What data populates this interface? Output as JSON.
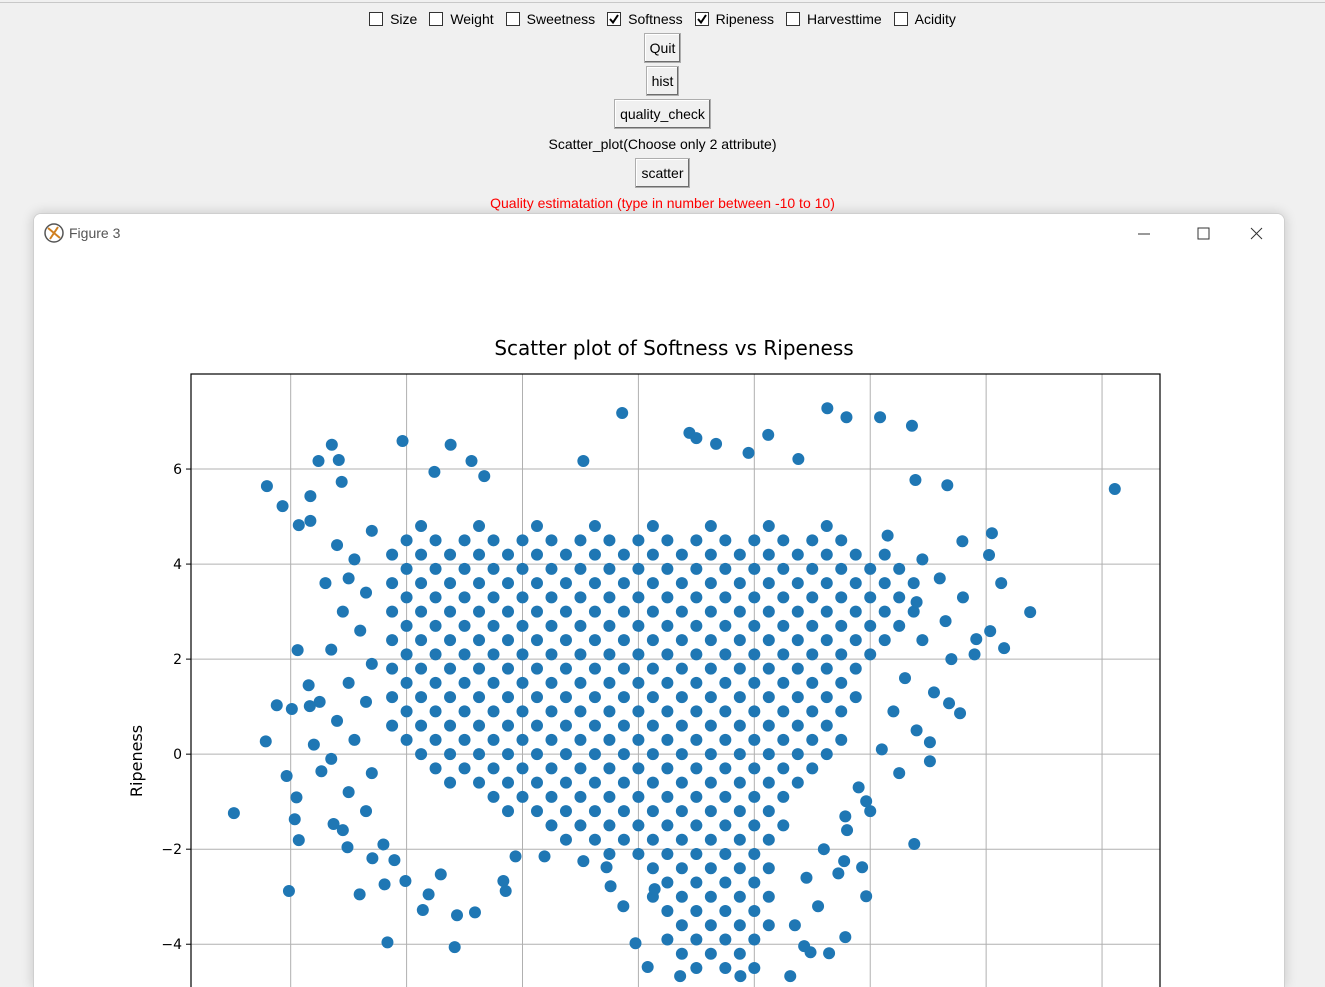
{
  "app": {
    "checkboxes": [
      {
        "label": "Size",
        "checked": false
      },
      {
        "label": "Weight",
        "checked": false
      },
      {
        "label": "Sweetness",
        "checked": false
      },
      {
        "label": "Softness",
        "checked": true
      },
      {
        "label": "Ripeness",
        "checked": true
      },
      {
        "label": "Harvesttime",
        "checked": false
      },
      {
        "label": "Acidity",
        "checked": false
      }
    ],
    "widgets": [
      {
        "kind": "button",
        "text": "Quit"
      },
      {
        "kind": "button",
        "text": "hist"
      },
      {
        "kind": "button",
        "text": "quality_check"
      },
      {
        "kind": "label",
        "text": "Scatter_plot(Choose only 2 attribute)"
      },
      {
        "kind": "button",
        "text": "scatter"
      },
      {
        "kind": "label",
        "text": "Quality estimatation (type in number between -10 to 10)",
        "color": "#ff0000"
      }
    ]
  },
  "window": {
    "title": "Figure 3"
  },
  "chart_data": {
    "type": "scatter",
    "title": "Scatter plot of Softness vs Ripeness",
    "y_label": "Ripeness",
    "color": "#1f77b4",
    "grid": true,
    "xlim": [
      -7.72,
      9.0
    ],
    "ylim": [
      -4.9,
      8.0
    ],
    "xticks": [
      -6,
      -4,
      -2,
      0,
      2,
      4,
      6,
      8
    ],
    "yticks": [
      {
        "value": -4,
        "label": "−4"
      },
      {
        "value": -2,
        "label": "−2"
      },
      0,
      2,
      4,
      6
    ],
    "x": [
      -3.75,
      -2.75,
      -1.75,
      -0.75,
      0.25,
      1.25,
      2.25,
      3.25,
      -4,
      -3.5,
      -3,
      -2.5,
      -2,
      -1.5,
      -1,
      -0.5,
      0,
      0.5,
      1,
      1.5,
      2,
      2.5,
      3,
      3.5,
      -4.25,
      -3.75,
      -3.25,
      -2.75,
      -2.25,
      -1.75,
      -1.25,
      -0.75,
      -0.25,
      0.25,
      0.75,
      1.25,
      1.75,
      2.25,
      2.75,
      3.25,
      3.75,
      4.25,
      -4,
      -3.5,
      -3,
      -2.5,
      -2,
      -1.5,
      -1,
      -0.5,
      0,
      0.5,
      1,
      1.5,
      2,
      2.5,
      3,
      3.5,
      4,
      4.5,
      -4.25,
      -3.75,
      -3.25,
      -2.75,
      -2.25,
      -1.75,
      -1.25,
      -0.75,
      -0.25,
      0.25,
      0.75,
      1.25,
      1.75,
      2.25,
      2.75,
      3.25,
      3.75,
      4.25,
      4.75,
      -4,
      -3.5,
      -3,
      -2.5,
      -2,
      -1.5,
      -1,
      -0.5,
      0,
      0.5,
      1,
      1.5,
      2,
      2.5,
      3,
      3.5,
      4,
      4.5,
      -4.25,
      -3.75,
      -3.25,
      -2.75,
      -2.25,
      -1.75,
      -1.25,
      -0.75,
      -0.25,
      0.25,
      0.75,
      1.25,
      1.75,
      2.25,
      2.75,
      3.25,
      3.75,
      4.25,
      4.75,
      -4,
      -3.5,
      -3,
      -2.5,
      -2,
      -1.5,
      -1,
      -0.5,
      0,
      0.5,
      1,
      1.5,
      2,
      2.5,
      3,
      3.5,
      4,
      4.5,
      -4.25,
      -3.75,
      -3.25,
      -2.75,
      -2.25,
      -1.75,
      -1.25,
      -0.75,
      -0.25,
      0.25,
      0.75,
      1.25,
      1.75,
      2.25,
      2.75,
      3.25,
      3.75,
      4.25,
      -4,
      -3.5,
      -3,
      -2.5,
      -2,
      -1.5,
      -1,
      -0.5,
      0,
      0.5,
      1,
      1.5,
      2,
      2.5,
      3,
      3.5,
      4,
      -4.25,
      -3.75,
      -3.25,
      -2.75,
      -2.25,
      -1.75,
      -1.25,
      -0.75,
      -0.25,
      0.25,
      0.75,
      1.25,
      1.75,
      2.25,
      2.75,
      3.25,
      3.75,
      -4,
      -3.5,
      -3,
      -2.5,
      -2,
      -1.5,
      -1,
      -0.5,
      0,
      0.5,
      1,
      1.5,
      2,
      2.5,
      3,
      3.5,
      -4.25,
      -3.75,
      -3.25,
      -2.75,
      -2.25,
      -1.75,
      -1.25,
      -0.75,
      -0.25,
      0.25,
      0.75,
      1.25,
      1.75,
      2.25,
      2.75,
      3.25,
      3.75,
      -4,
      -3.5,
      -3,
      -2.5,
      -2,
      -1.5,
      -1,
      -0.5,
      0,
      0.5,
      1,
      1.5,
      2,
      2.5,
      3,
      3.5,
      -4.25,
      -3.75,
      -3.25,
      -2.75,
      -2.25,
      -1.75,
      -1.25,
      -0.75,
      -0.25,
      0.25,
      0.75,
      1.25,
      1.75,
      2.25,
      2.75,
      3.25,
      -4,
      -3.5,
      -3,
      -2.5,
      -2,
      -1.5,
      -1,
      -0.5,
      0,
      0.5,
      1,
      1.5,
      2,
      2.5,
      3,
      3.5,
      -3.75,
      -3.25,
      -2.75,
      -2.25,
      -1.75,
      -1.25,
      -0.75,
      -0.25,
      0.25,
      0.75,
      1.25,
      1.75,
      2.25,
      2.75,
      3.25,
      -3.5,
      -3,
      -2.5,
      -2,
      -1.5,
      -1,
      -0.5,
      0,
      0.5,
      1,
      1.5,
      2,
      2.5,
      3,
      -3.25,
      -2.75,
      -2.25,
      -1.75,
      -1.25,
      -0.75,
      -0.25,
      0.25,
      0.75,
      1.25,
      1.75,
      2.25,
      2.75,
      -2.5,
      -2,
      -1.5,
      -1,
      -0.5,
      0,
      0.5,
      1,
      1.5,
      2,
      2.5,
      -2.25,
      -1.75,
      -1.25,
      -0.75,
      -0.25,
      0.25,
      0.75,
      1.25,
      1.75,
      2.25,
      -1.5,
      -1,
      -0.5,
      0,
      0.5,
      1,
      1.5,
      2,
      2.5,
      -1.25,
      -0.75,
      -0.25,
      0.25,
      0.75,
      1.25,
      1.75,
      2.25,
      -0.5,
      0,
      0.5,
      1,
      1.5,
      2,
      0.25,
      0.75,
      1.25,
      1.75,
      2.25,
      0.5,
      1,
      1.5,
      2,
      0.25,
      0.75,
      1.25,
      1.75,
      2.25,
      0.5,
      1,
      1.5,
      2,
      0.75,
      1.25,
      1.75,
      2.25,
      0.5,
      1,
      1.5,
      2,
      0.75,
      1.25,
      1.75,
      1,
      1.5,
      2,
      -5.2,
      -4.9,
      -5.0,
      -4.7,
      -5.1,
      -4.8,
      -5.3,
      -4.6,
      -5.0,
      -4.7,
      -5.2,
      -4.9,
      -5.3,
      -4.6,
      -5.0,
      -4.7,
      -5.1,
      -4.4,
      -4.6,
      -5.4,
      -5.5,
      -5.6,
      4.9,
      5.2,
      4.8,
      5.3,
      4.9,
      5.4,
      4.6,
      5.1,
      4.4,
      4.8,
      4.2,
      4.5,
      3.8,
      4.0,
      3.6,
      3.2,
      2.9,
      3.1,
      2.7,
      5.6,
      5.8,
      4.3,
      -6.98,
      -6.41,
      -6.14,
      -6.43,
      -6.24,
      -5.98,
      -5.88,
      -5.69,
      -6.07,
      -6.03,
      -5.93,
      -5.86,
      -5.9,
      -5.47,
      -5.67,
      -5.29,
      -5.52,
      -5.17,
      -5.12,
      -5.66,
      -5.86,
      -5.66,
      -4.07,
      -3.24,
      -2.88,
      -2.66,
      -3.52,
      -0.95,
      -0.28,
      0.88,
      1,
      1.34,
      1.9,
      2.24,
      2.76,
      3.26,
      3.59,
      4.17,
      4.72,
      4.78,
      5.33,
      8.22,
      6.1,
      6.05,
      6.26,
      6.76,
      6.31,
      6.07,
      5.83,
      5.59,
      4.76,
      3.93,
      3.93,
      3.86,
      3.45,
      3.55,
      3.57,
      5.03,
      5.03,
      5.55,
      5.36,
      -3.17,
      -4.33,
      -3.13,
      -2.82,
      -3.72,
      -4.81,
      -4.38,
      -4.02,
      -3.62,
      -3.41,
      -2.33,
      -2.29,
      -4.59,
      -4.21,
      -5.26,
      -5.02,
      -0.05,
      0.16,
      0.72,
      1.76,
      2.62,
      2.97,
      3.29,
      3.57,
      2.86,
      -0.95,
      -0.48,
      -0.26,
      0.28,
      -0.55,
      -1.62,
      -2.12
    ],
    "values": [
      4.8,
      4.8,
      4.8,
      4.8,
      4.8,
      4.8,
      4.8,
      4.8,
      4.5,
      4.5,
      4.5,
      4.5,
      4.5,
      4.5,
      4.5,
      4.5,
      4.5,
      4.5,
      4.5,
      4.5,
      4.5,
      4.5,
      4.5,
      4.5,
      4.2,
      4.2,
      4.2,
      4.2,
      4.2,
      4.2,
      4.2,
      4.2,
      4.2,
      4.2,
      4.2,
      4.2,
      4.2,
      4.2,
      4.2,
      4.2,
      4.2,
      4.2,
      3.9,
      3.9,
      3.9,
      3.9,
      3.9,
      3.9,
      3.9,
      3.9,
      3.9,
      3.9,
      3.9,
      3.9,
      3.9,
      3.9,
      3.9,
      3.9,
      3.9,
      3.9,
      3.6,
      3.6,
      3.6,
      3.6,
      3.6,
      3.6,
      3.6,
      3.6,
      3.6,
      3.6,
      3.6,
      3.6,
      3.6,
      3.6,
      3.6,
      3.6,
      3.6,
      3.6,
      3.6,
      3.3,
      3.3,
      3.3,
      3.3,
      3.3,
      3.3,
      3.3,
      3.3,
      3.3,
      3.3,
      3.3,
      3.3,
      3.3,
      3.3,
      3.3,
      3.3,
      3.3,
      3.3,
      3.0,
      3.0,
      3.0,
      3.0,
      3.0,
      3.0,
      3.0,
      3.0,
      3.0,
      3.0,
      3.0,
      3.0,
      3.0,
      3.0,
      3.0,
      3.0,
      3.0,
      3.0,
      3.0,
      2.7,
      2.7,
      2.7,
      2.7,
      2.7,
      2.7,
      2.7,
      2.7,
      2.7,
      2.7,
      2.7,
      2.7,
      2.7,
      2.7,
      2.7,
      2.7,
      2.7,
      2.7,
      2.4,
      2.4,
      2.4,
      2.4,
      2.4,
      2.4,
      2.4,
      2.4,
      2.4,
      2.4,
      2.4,
      2.4,
      2.4,
      2.4,
      2.4,
      2.4,
      2.4,
      2.4,
      2.1,
      2.1,
      2.1,
      2.1,
      2.1,
      2.1,
      2.1,
      2.1,
      2.1,
      2.1,
      2.1,
      2.1,
      2.1,
      2.1,
      2.1,
      2.1,
      2.1,
      1.8,
      1.8,
      1.8,
      1.8,
      1.8,
      1.8,
      1.8,
      1.8,
      1.8,
      1.8,
      1.8,
      1.8,
      1.8,
      1.8,
      1.8,
      1.8,
      1.8,
      1.5,
      1.5,
      1.5,
      1.5,
      1.5,
      1.5,
      1.5,
      1.5,
      1.5,
      1.5,
      1.5,
      1.5,
      1.5,
      1.5,
      1.5,
      1.5,
      1.2,
      1.2,
      1.2,
      1.2,
      1.2,
      1.2,
      1.2,
      1.2,
      1.2,
      1.2,
      1.2,
      1.2,
      1.2,
      1.2,
      1.2,
      1.2,
      1.2,
      0.9,
      0.9,
      0.9,
      0.9,
      0.9,
      0.9,
      0.9,
      0.9,
      0.9,
      0.9,
      0.9,
      0.9,
      0.9,
      0.9,
      0.9,
      0.9,
      0.6,
      0.6,
      0.6,
      0.6,
      0.6,
      0.6,
      0.6,
      0.6,
      0.6,
      0.6,
      0.6,
      0.6,
      0.6,
      0.6,
      0.6,
      0.6,
      0.3,
      0.3,
      0.3,
      0.3,
      0.3,
      0.3,
      0.3,
      0.3,
      0.3,
      0.3,
      0.3,
      0.3,
      0.3,
      0.3,
      0.3,
      0.3,
      0,
      0,
      0,
      0,
      0,
      0,
      0,
      0,
      0,
      0,
      0,
      0,
      0,
      0,
      0,
      -0.3,
      -0.3,
      -0.3,
      -0.3,
      -0.3,
      -0.3,
      -0.3,
      -0.3,
      -0.3,
      -0.3,
      -0.3,
      -0.3,
      -0.3,
      -0.3,
      -0.6,
      -0.6,
      -0.6,
      -0.6,
      -0.6,
      -0.6,
      -0.6,
      -0.6,
      -0.6,
      -0.6,
      -0.6,
      -0.6,
      -0.6,
      -0.9,
      -0.9,
      -0.9,
      -0.9,
      -0.9,
      -0.9,
      -0.9,
      -0.9,
      -0.9,
      -0.9,
      -0.9,
      -1.2,
      -1.2,
      -1.2,
      -1.2,
      -1.2,
      -1.2,
      -1.2,
      -1.2,
      -1.2,
      -1.2,
      -1.5,
      -1.5,
      -1.5,
      -1.5,
      -1.5,
      -1.5,
      -1.5,
      -1.5,
      -1.5,
      -1.8,
      -1.8,
      -1.8,
      -1.8,
      -1.8,
      -1.8,
      -1.8,
      -1.8,
      -2.1,
      -2.1,
      -2.1,
      -2.1,
      -2.1,
      -2.1,
      -2.4,
      -2.4,
      -2.4,
      -2.4,
      -2.4,
      -2.7,
      -2.7,
      -2.7,
      -2.7,
      -3.0,
      -3.0,
      -3.0,
      -3.0,
      -3.0,
      -3.3,
      -3.3,
      -3.3,
      -3.3,
      -3.6,
      -3.6,
      -3.6,
      -3.6,
      -3.9,
      -3.9,
      -3.9,
      -3.9,
      -4.2,
      -4.2,
      -4.2,
      -4.5,
      -4.5,
      -4.5,
      4.4,
      4.1,
      3.7,
      3.4,
      3.0,
      2.6,
      2.2,
      1.9,
      1.5,
      1.1,
      0.7,
      0.3,
      -0.1,
      -0.4,
      -0.8,
      -1.2,
      -1.6,
      -1.9,
      4.7,
      3.6,
      1.1,
      0.2,
      4.1,
      3.7,
      3.2,
      2.8,
      2.4,
      2.0,
      1.6,
      1.3,
      0.9,
      0.5,
      0.1,
      -0.4,
      -0.7,
      -1.2,
      -1.6,
      -2.0,
      -2.6,
      -3.2,
      -3.6,
      3.3,
      2.1,
      4.6,
      -1.24,
      5.64,
      5.22,
      0.27,
      1.03,
      0.95,
      2.19,
      1.45,
      -0.46,
      -2.88,
      -1.37,
      -1.81,
      -0.91,
      -0.36,
      1.01,
      6.51,
      6.17,
      6.19,
      5.73,
      5.43,
      4.82,
      4.91,
      6.59,
      6.51,
      6.17,
      5.85,
      5.94,
      6.17,
      7.18,
      6.76,
      6.65,
      6.53,
      6.34,
      6.72,
      6.21,
      7.28,
      7.09,
      7.09,
      6.91,
      5.77,
      5.66,
      5.58,
      4.65,
      4.19,
      3.6,
      2.99,
      2.23,
      2.59,
      2.42,
      4.48,
      -1.89,
      -0.99,
      -2.99,
      -2.38,
      -2.51,
      -2.25,
      -1.31,
      0.25,
      -0.15,
      0.86,
      1.07,
      -4.06,
      -3.96,
      -3.39,
      -3.33,
      -3.28,
      -2.95,
      -2.74,
      -2.67,
      -2.95,
      -2.53,
      -2.67,
      -2.88,
      -2.19,
      -2.23,
      -1.47,
      -1.96,
      -3.98,
      -4.48,
      -4.67,
      -4.67,
      -4.67,
      -4.17,
      -4.19,
      -3.85,
      -4.04,
      -2.25,
      -2.78,
      -3.2,
      -2.84,
      -2.38,
      -2.15,
      -2.15
    ]
  }
}
